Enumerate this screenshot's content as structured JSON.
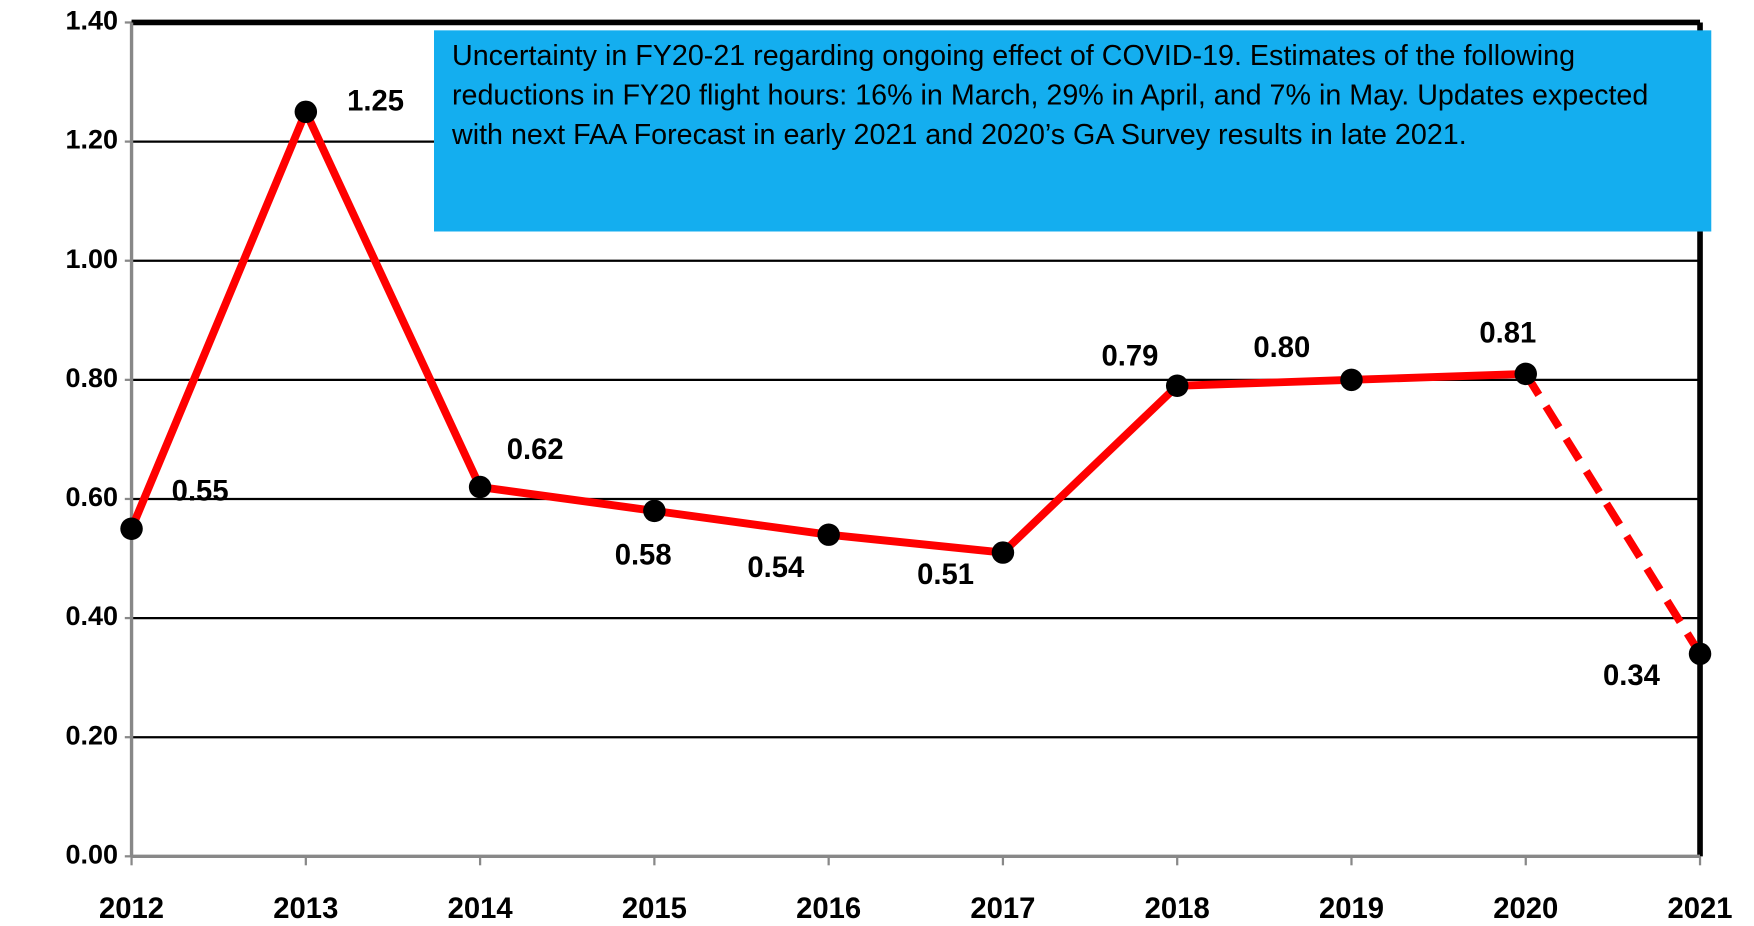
{
  "chart_data": {
    "type": "line",
    "categories": [
      "2012",
      "2013",
      "2014",
      "2015",
      "2016",
      "2017",
      "2018",
      "2019",
      "2020",
      "2021"
    ],
    "values": [
      0.55,
      1.25,
      0.62,
      0.58,
      0.54,
      0.51,
      0.79,
      0.8,
      0.81,
      0.34
    ],
    "value_labels": [
      "0.55",
      "1.25",
      "0.62",
      "0.58",
      "0.54",
      "0.51",
      "0.79",
      "0.80",
      "0.81",
      "0.34"
    ],
    "segment_styles": [
      "solid",
      "solid",
      "solid",
      "solid",
      "solid",
      "solid",
      "solid",
      "solid",
      "solid",
      "dashed"
    ],
    "color": "#ff0000",
    "marker_color": "#000000",
    "ylim": [
      0,
      1.4
    ],
    "yticks": [
      {
        "value": 0,
        "label": "0.00"
      },
      {
        "value": 0.2,
        "label": "0.20"
      },
      {
        "value": 0.4,
        "label": "0.40"
      },
      {
        "value": 0.6,
        "label": "0.60"
      },
      {
        "value": 0.8,
        "label": "0.80"
      },
      {
        "value": 1.0,
        "label": "1.00"
      },
      {
        "value": 1.2,
        "label": "1.20"
      },
      {
        "value": 1.4,
        "label": "1.40"
      }
    ],
    "grid": true,
    "annotation": "Uncertainty in FY20-21 regarding ongoing effect of COVID-19. Estimates of the following reductions in FY20 flight hours: 16% in March, 29% in April, and 7% in May. Updates expected with next FAA Forecast in early 2021 and 2020’s GA Survey results in late 2021.",
    "annotation_color": "#14aeef"
  }
}
